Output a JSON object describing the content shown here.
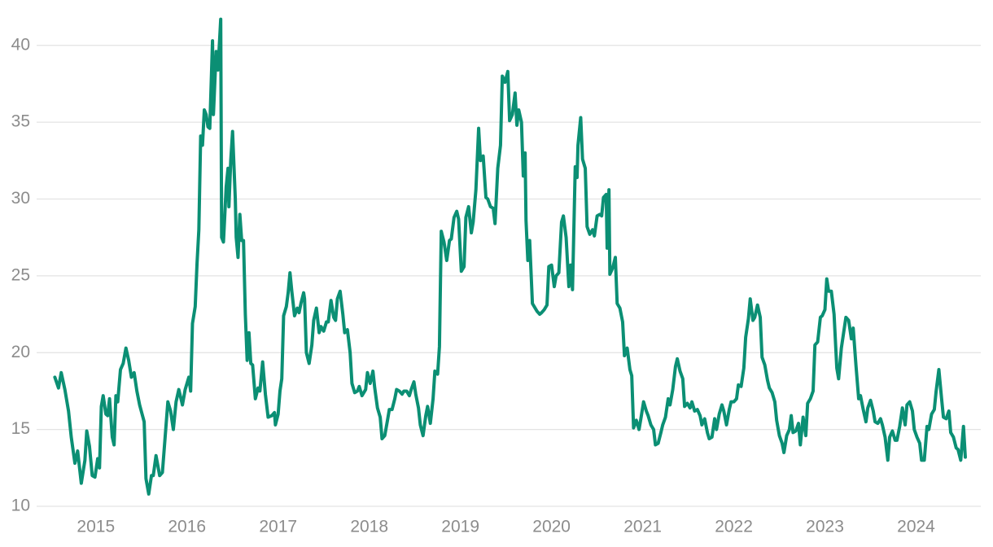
{
  "chart_data": {
    "type": "line",
    "color": "#0b8f74",
    "grid": true,
    "xlim": [
      2014.35,
      2024.71
    ],
    "xticks": [
      2015,
      2016,
      2017,
      2018,
      2019,
      2020,
      2021,
      2022,
      2023,
      2024
    ],
    "ylim": [
      10,
      42
    ],
    "yticks": [
      10,
      15,
      20,
      25,
      30,
      35,
      40
    ],
    "x": [
      2014.55,
      2014.59,
      2014.62,
      2014.66,
      2014.7,
      2014.73,
      2014.77,
      2014.8,
      2014.84,
      2014.88,
      2014.9,
      2014.93,
      2014.96,
      2014.99,
      2015.02,
      2015.04,
      2015.06,
      2015.08,
      2015.11,
      2015.13,
      2015.15,
      2015.18,
      2015.2,
      2015.22,
      2015.24,
      2015.27,
      2015.3,
      2015.33,
      2015.36,
      2015.39,
      2015.42,
      2015.45,
      2015.48,
      2015.53,
      2015.55,
      2015.58,
      2015.61,
      2015.63,
      2015.66,
      2015.7,
      2015.73,
      2015.76,
      2015.79,
      2015.82,
      2015.85,
      2015.88,
      2015.91,
      2015.95,
      2015.98,
      2016.02,
      2016.04,
      2016.06,
      2016.09,
      2016.11,
      2016.13,
      2016.15,
      2016.17,
      2016.19,
      2016.21,
      2016.23,
      2016.25,
      2016.28,
      2016.29,
      2016.32,
      2016.34,
      2016.37,
      2016.38,
      2016.4,
      2016.43,
      2016.45,
      2016.46,
      2016.48,
      2016.5,
      2016.53,
      2016.54,
      2016.56,
      2016.58,
      2016.6,
      2016.62,
      2016.64,
      2016.66,
      2016.68,
      2016.7,
      2016.72,
      2016.75,
      2016.78,
      2016.8,
      2016.83,
      2016.86,
      2016.89,
      2016.93,
      2016.96,
      2016.97,
      2017.0,
      2017.02,
      2017.04,
      2017.06,
      2017.09,
      2017.11,
      2017.13,
      2017.15,
      2017.18,
      2017.21,
      2017.23,
      2017.25,
      2017.28,
      2017.29,
      2017.31,
      2017.34,
      2017.37,
      2017.39,
      2017.42,
      2017.45,
      2017.47,
      2017.5,
      2017.53,
      2017.55,
      2017.58,
      2017.61,
      2017.63,
      2017.65,
      2017.68,
      2017.71,
      2017.73,
      2017.76,
      2017.79,
      2017.81,
      2017.84,
      2017.87,
      2017.89,
      2017.92,
      2017.96,
      2017.98,
      2018.01,
      2018.04,
      2018.06,
      2018.09,
      2018.12,
      2018.14,
      2018.17,
      2018.2,
      2018.22,
      2018.25,
      2018.28,
      2018.3,
      2018.33,
      2018.36,
      2018.38,
      2018.41,
      2018.44,
      2018.46,
      2018.49,
      2018.51,
      2018.54,
      2018.56,
      2018.59,
      2018.62,
      2018.64,
      2018.67,
      2018.7,
      2018.72,
      2018.75,
      2018.77,
      2018.79,
      2018.82,
      2018.85,
      2018.88,
      2018.9,
      2018.93,
      2018.96,
      2018.98,
      2019.01,
      2019.04,
      2019.06,
      2019.09,
      2019.12,
      2019.14,
      2019.17,
      2019.2,
      2019.22,
      2019.25,
      2019.28,
      2019.3,
      2019.33,
      2019.36,
      2019.38,
      2019.41,
      2019.44,
      2019.46,
      2019.49,
      2019.52,
      2019.54,
      2019.57,
      2019.6,
      2019.62,
      2019.64,
      2019.67,
      2019.69,
      2019.71,
      2019.72,
      2019.74,
      2019.76,
      2019.79,
      2019.81,
      2019.84,
      2019.87,
      2019.89,
      2019.92,
      2019.95,
      2019.97,
      2020.0,
      2020.03,
      2020.05,
      2020.08,
      2020.11,
      2020.13,
      2020.16,
      2020.19,
      2020.21,
      2020.23,
      2020.26,
      2020.28,
      2020.29,
      2020.32,
      2020.34,
      2020.37,
      2020.39,
      2020.42,
      2020.45,
      2020.47,
      2020.5,
      2020.53,
      2020.55,
      2020.57,
      2020.6,
      2020.61,
      2020.63,
      2020.64,
      2020.67,
      2020.7,
      2020.72,
      2020.75,
      2020.78,
      2020.8,
      2020.83,
      2020.86,
      2020.88,
      2020.9,
      2020.93,
      2020.96,
      2020.98,
      2021.01,
      2021.04,
      2021.06,
      2021.09,
      2021.12,
      2021.14,
      2021.17,
      2021.2,
      2021.22,
      2021.25,
      2021.28,
      2021.3,
      2021.33,
      2021.36,
      2021.38,
      2021.41,
      2021.44,
      2021.46,
      2021.49,
      2021.52,
      2021.54,
      2021.57,
      2021.6,
      2021.63,
      2021.65,
      2021.68,
      2021.71,
      2021.73,
      2021.76,
      2021.79,
      2021.81,
      2021.84,
      2021.87,
      2021.89,
      2021.92,
      2021.95,
      2021.97,
      2022.0,
      2022.03,
      2022.05,
      2022.08,
      2022.11,
      2022.13,
      2022.16,
      2022.18,
      2022.21,
      2022.23,
      2022.26,
      2022.29,
      2022.31,
      2022.34,
      2022.37,
      2022.39,
      2022.42,
      2022.45,
      2022.47,
      2022.5,
      2022.53,
      2022.55,
      2022.58,
      2022.61,
      2022.63,
      2022.65,
      2022.68,
      2022.71,
      2022.73,
      2022.76,
      2022.79,
      2022.81,
      2022.84,
      2022.87,
      2022.89,
      2022.92,
      2022.95,
      2022.97,
      2023.0,
      2023.02,
      2023.04,
      2023.07,
      2023.1,
      2023.13,
      2023.15,
      2023.18,
      2023.21,
      2023.23,
      2023.26,
      2023.29,
      2023.31,
      2023.34,
      2023.37,
      2023.39,
      2023.42,
      2023.45,
      2023.47,
      2023.5,
      2023.53,
      2023.55,
      2023.58,
      2023.61,
      2023.63,
      2023.66,
      2023.69,
      2023.71,
      2023.74,
      2023.77,
      2023.79,
      2023.82,
      2023.85,
      2023.88,
      2023.9,
      2023.93,
      2023.96,
      2023.98,
      2024.01,
      2024.04,
      2024.06,
      2024.09,
      2024.12,
      2024.14,
      2024.17,
      2024.2,
      2024.22,
      2024.25,
      2024.28,
      2024.3,
      2024.33,
      2024.36,
      2024.38,
      2024.41,
      2024.44,
      2024.46,
      2024.49,
      2024.52,
      2024.54
    ],
    "values": [
      18.4,
      17.7,
      18.7,
      17.6,
      16.2,
      14.5,
      12.8,
      13.6,
      11.5,
      13.0,
      14.9,
      13.9,
      12.0,
      11.9,
      13.1,
      12.5,
      16.5,
      17.2,
      16.0,
      15.9,
      17.0,
      14.5,
      14.0,
      17.2,
      16.8,
      18.9,
      19.3,
      20.3,
      19.5,
      18.4,
      18.7,
      17.5,
      16.6,
      15.5,
      11.8,
      10.8,
      12.0,
      12.0,
      13.3,
      12.0,
      12.2,
      14.5,
      16.8,
      16.2,
      15.0,
      16.8,
      17.6,
      16.6,
      17.6,
      18.4,
      17.5,
      21.9,
      23.0,
      25.8,
      28.0,
      34.1,
      33.5,
      35.8,
      35.5,
      34.7,
      34.6,
      40.3,
      35.5,
      39.6,
      38.4,
      41.7,
      27.5,
      27.2,
      30.8,
      32.0,
      29.5,
      32.5,
      34.4,
      30.0,
      27.5,
      26.2,
      29.0,
      27.3,
      27.3,
      22.5,
      19.5,
      21.3,
      19.3,
      19.2,
      17.0,
      17.7,
      17.5,
      19.4,
      17.3,
      15.8,
      15.9,
      16.1,
      15.3,
      16.0,
      17.5,
      18.3,
      22.4,
      23.0,
      23.9,
      25.2,
      24.0,
      22.4,
      22.9,
      22.6,
      23.2,
      23.9,
      23.5,
      20.0,
      19.3,
      20.5,
      22.1,
      22.9,
      21.3,
      21.7,
      21.4,
      22.0,
      22.0,
      23.4,
      22.3,
      22.1,
      23.5,
      24.0,
      22.5,
      21.3,
      21.5,
      20.0,
      18.0,
      17.4,
      17.5,
      17.8,
      17.2,
      17.6,
      18.7,
      18.0,
      18.8,
      17.7,
      16.4,
      15.8,
      14.4,
      14.6,
      15.6,
      16.3,
      16.3,
      17.0,
      17.6,
      17.5,
      17.3,
      17.5,
      17.5,
      17.2,
      17.6,
      18.1,
      17.3,
      16.4,
      15.3,
      14.6,
      15.9,
      16.5,
      15.4,
      17.0,
      18.8,
      18.6,
      20.4,
      27.9,
      27.2,
      26.0,
      27.3,
      27.4,
      28.8,
      29.2,
      28.7,
      25.3,
      25.6,
      28.8,
      29.5,
      27.8,
      28.5,
      30.6,
      34.6,
      32.5,
      32.8,
      30.1,
      30.0,
      29.5,
      29.4,
      28.4,
      32.0,
      33.5,
      38.0,
      37.6,
      38.3,
      35.1,
      35.5,
      36.9,
      34.8,
      35.8,
      35.0,
      31.5,
      33.0,
      28.6,
      26.0,
      27.3,
      23.2,
      23.0,
      22.7,
      22.5,
      22.6,
      22.8,
      23.1,
      25.6,
      25.7,
      24.3,
      25.0,
      25.2,
      28.5,
      28.9,
      27.5,
      24.3,
      25.7,
      24.1,
      32.1,
      31.4,
      33.5,
      35.3,
      32.6,
      32.0,
      28.2,
      27.7,
      28.0,
      27.6,
      28.9,
      29.0,
      28.9,
      30.1,
      30.3,
      26.8,
      30.6,
      25.1,
      25.5,
      26.2,
      23.2,
      22.9,
      22.0,
      19.8,
      20.3,
      18.9,
      18.5,
      15.1,
      15.6,
      15.0,
      15.7,
      16.8,
      16.2,
      15.9,
      15.3,
      15.0,
      14.0,
      14.1,
      14.8,
      15.3,
      15.8,
      17.0,
      16.6,
      17.6,
      19.1,
      19.6,
      18.8,
      18.3,
      16.5,
      16.7,
      16.4,
      16.8,
      16.2,
      16.3,
      15.9,
      15.3,
      15.7,
      14.8,
      14.4,
      14.5,
      15.7,
      15.0,
      16.0,
      16.6,
      16.2,
      15.3,
      16.3,
      16.8,
      16.8,
      17.0,
      17.9,
      17.8,
      19.0,
      21.0,
      22.2,
      23.5,
      22.1,
      22.3,
      23.1,
      22.3,
      19.7,
      19.2,
      18.2,
      17.7,
      17.4,
      16.8,
      15.6,
      14.6,
      14.1,
      13.5,
      14.6,
      15.0,
      15.9,
      14.8,
      14.9,
      15.4,
      14.0,
      15.8,
      14.6,
      16.7,
      17.0,
      17.5,
      20.5,
      20.7,
      22.3,
      22.4,
      22.8,
      24.8,
      24.0,
      24.0,
      22.5,
      19.0,
      18.3,
      20.3,
      21.5,
      22.3,
      22.1,
      20.9,
      21.6,
      19.2,
      17.0,
      17.2,
      16.3,
      15.5,
      16.4,
      16.9,
      16.2,
      15.5,
      15.4,
      15.7,
      15.3,
      14.5,
      13.0,
      14.5,
      14.9,
      14.3,
      14.3,
      15.2,
      16.4,
      15.3,
      16.6,
      16.8,
      16.2,
      15.0,
      14.5,
      14.1,
      13.0,
      13.0,
      15.2,
      15.0,
      16.0,
      16.3,
      17.5,
      18.9,
      17.0,
      15.8,
      15.7,
      16.2,
      14.8,
      14.5,
      13.8,
      13.7,
      13.0,
      15.2,
      13.2
    ]
  }
}
